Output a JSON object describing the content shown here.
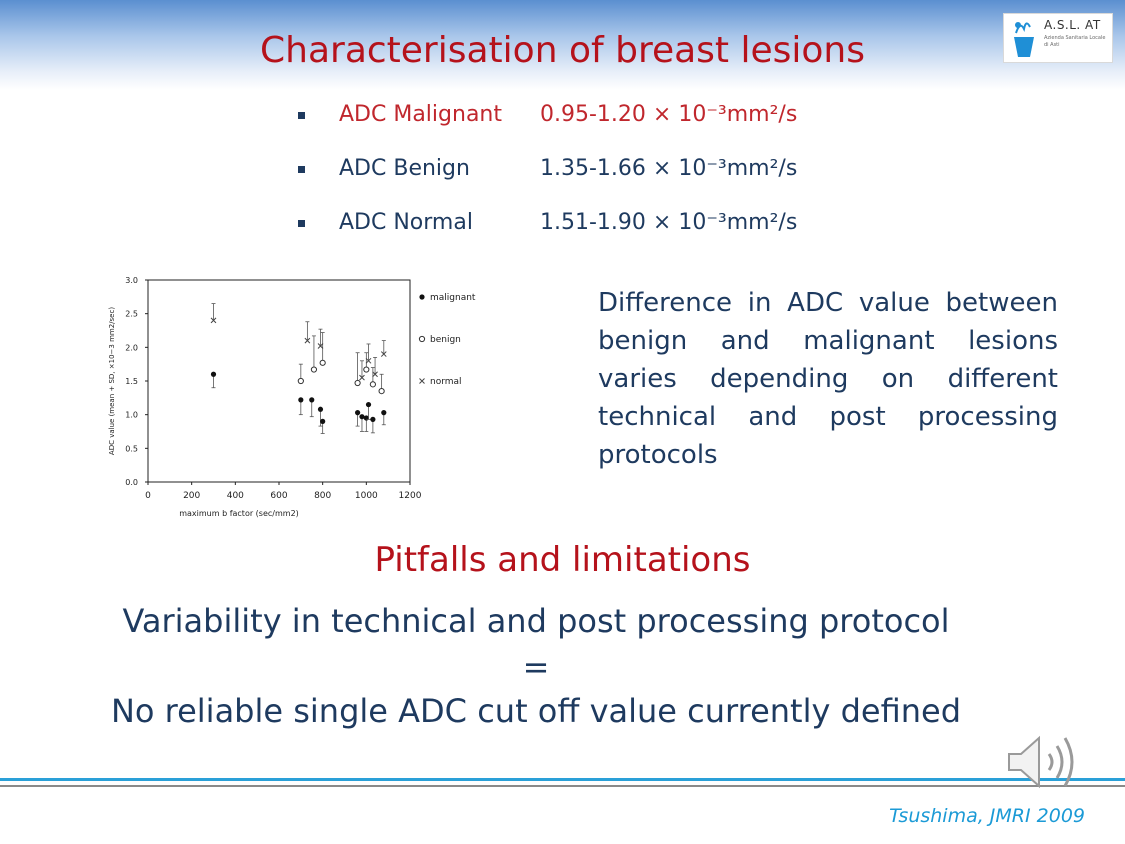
{
  "slide": {
    "title": "Characterisation of breast lesions",
    "logo": {
      "name": "A.S.L. AT",
      "subtitle": "Azienda Sanitaria Locale di Asti",
      "icon": "asl-logo-icon"
    },
    "bullets": [
      {
        "label": "ADC Malignant",
        "value": "0.95-1.20  × 10⁻³mm²/s",
        "color": "#c0272d"
      },
      {
        "label": "ADC Benign",
        "value": "1.35-1.66  × 10⁻³mm²/s",
        "color": "#1e3a5f"
      },
      {
        "label": "ADC Normal",
        "value": "1.51-1.90  × 10⁻³mm²/s",
        "color": "#1e3a5f"
      }
    ],
    "description": "Difference in ADC value between benign and malignant lesions varies depending on different technical and post processing protocols",
    "subtitle": "Pitfalls and limitations",
    "conclusion": {
      "line1": "Variability in technical and post processing protocol",
      "line2": "=",
      "line3": "No reliable single ADC cut off value currently defined"
    },
    "citation": "Tsushima, JMRI 2009",
    "icons": {
      "audio": "speaker-icon"
    },
    "colors": {
      "title": "#b5121b",
      "text": "#1e3a5f",
      "accent": "#2aa0d8"
    }
  },
  "chart_data": {
    "type": "scatter",
    "xlabel": "maximum b factor (sec/mm2)",
    "ylabel": "ADC value (mean + SD, ×10−3 mm2/sec)",
    "xlim": [
      0,
      1200
    ],
    "ylim": [
      0,
      3.0
    ],
    "xticks": [
      0,
      200,
      400,
      600,
      800,
      1000,
      1200
    ],
    "yticks": [
      0.0,
      0.5,
      1.0,
      1.5,
      2.0,
      2.5,
      3.0
    ],
    "x_tick_labels": [
      "0",
      "200",
      "400",
      "600",
      "800",
      "1000",
      "1200"
    ],
    "y_tick_labels": [
      "0.0",
      "0.5",
      "1.0",
      "1.5",
      "2.0",
      "2.5",
      "3.0"
    ],
    "grid": false,
    "legend_position": "right",
    "series": [
      {
        "name": "malignant",
        "marker": "filled-circle",
        "points": [
          {
            "x": 300,
            "y": 1.6,
            "sd": 0.2
          },
          {
            "x": 700,
            "y": 1.22,
            "sd": 0.22
          },
          {
            "x": 750,
            "y": 1.22,
            "sd": 0.25
          },
          {
            "x": 790,
            "y": 1.08,
            "sd": 0.25
          },
          {
            "x": 800,
            "y": 0.9,
            "sd": 0.18
          },
          {
            "x": 960,
            "y": 1.03,
            "sd": 0.2
          },
          {
            "x": 980,
            "y": 0.97,
            "sd": 0.22
          },
          {
            "x": 1000,
            "y": 0.95,
            "sd": 0.2
          },
          {
            "x": 1010,
            "y": 1.15,
            "sd": 0.22
          },
          {
            "x": 1030,
            "y": 0.93,
            "sd": 0.2
          },
          {
            "x": 1080,
            "y": 1.03,
            "sd": 0.18
          }
        ]
      },
      {
        "name": "benign",
        "marker": "open-circle",
        "points": [
          {
            "x": 700,
            "y": 1.5,
            "sd": 0.25
          },
          {
            "x": 760,
            "y": 1.67,
            "sd": 0.5
          },
          {
            "x": 800,
            "y": 1.77,
            "sd": 0.45
          },
          {
            "x": 960,
            "y": 1.47,
            "sd": 0.45
          },
          {
            "x": 1000,
            "y": 1.67,
            "sd": 0.25
          },
          {
            "x": 1030,
            "y": 1.45,
            "sd": 0.25
          },
          {
            "x": 1070,
            "y": 1.35,
            "sd": 0.25
          }
        ]
      },
      {
        "name": "normal",
        "marker": "cross",
        "points": [
          {
            "x": 300,
            "y": 2.4,
            "sd": 0.25
          },
          {
            "x": 730,
            "y": 2.1,
            "sd": 0.28
          },
          {
            "x": 790,
            "y": 2.02,
            "sd": 0.25
          },
          {
            "x": 980,
            "y": 1.55,
            "sd": 0.25
          },
          {
            "x": 1010,
            "y": 1.8,
            "sd": 0.25
          },
          {
            "x": 1040,
            "y": 1.6,
            "sd": 0.25
          },
          {
            "x": 1080,
            "y": 1.9,
            "sd": 0.2
          }
        ]
      }
    ]
  }
}
